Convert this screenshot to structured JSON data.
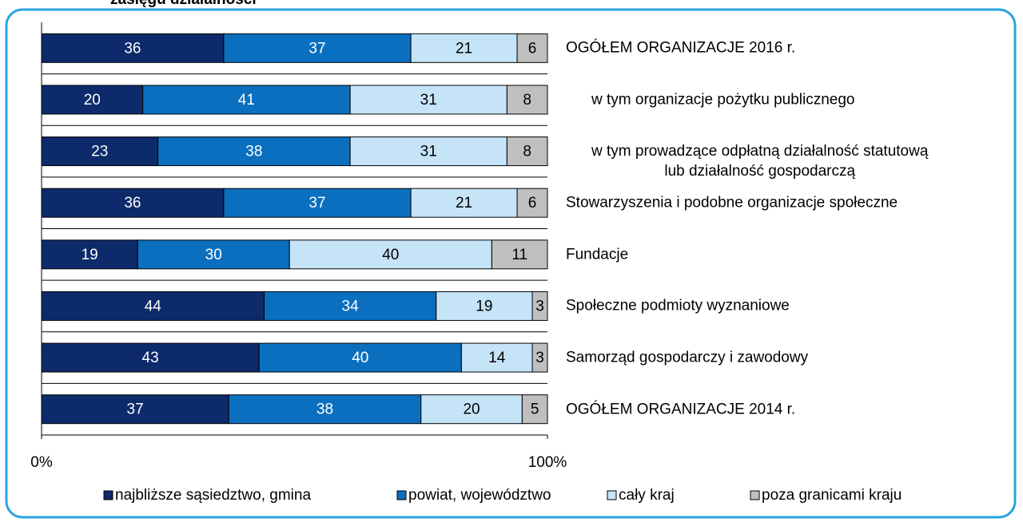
{
  "chart_data": {
    "type": "stacked-barh",
    "title": "zasięgu działalności",
    "categories": [
      "OGÓŁEM ORGANIZACJE 2016 r.",
      "w tym organizacje pożytku publicznego",
      "w tym prowadzące odpłatną działalność statutową\nlub działalność gospodarczą",
      "Stowarzyszenia i podobne organizacje społeczne",
      "Fundacje",
      "Społeczne podmioty wyznaniowe",
      "Samorząd gospodarczy i zawodowy",
      "OGÓŁEM ORGANIZACJE 2014 r."
    ],
    "series": [
      {
        "name": "najbliższe sąsiedztwo, gmina",
        "color": "#0d2a6b",
        "values": [
          36,
          20,
          23,
          36,
          19,
          44,
          43,
          37
        ]
      },
      {
        "name": "powiat, województwo",
        "color": "#0b6fbf",
        "values": [
          37,
          41,
          38,
          37,
          30,
          34,
          40,
          38
        ]
      },
      {
        "name": "cały kraj",
        "color": "#c6e4f8",
        "values": [
          21,
          31,
          31,
          21,
          40,
          19,
          14,
          20
        ]
      },
      {
        "name": "poza granicami kraju",
        "color": "#bfbfbf",
        "values": [
          6,
          8,
          8,
          6,
          11,
          3,
          3,
          5
        ]
      }
    ],
    "xlim": [
      0,
      100
    ],
    "xticks": [
      {
        "value": 0,
        "label": "0%"
      },
      {
        "value": 100,
        "label": "100%"
      }
    ],
    "legend": "bottom"
  }
}
